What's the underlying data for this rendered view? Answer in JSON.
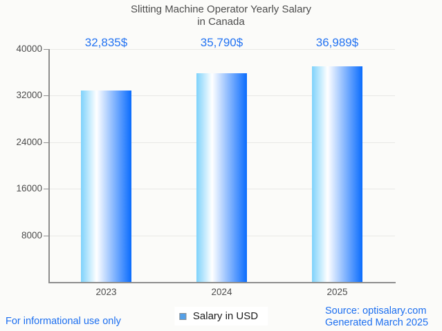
{
  "page": {
    "background": "#fbfbf9",
    "footer_left": "For informational use only",
    "footer_right_line1": "Source: optisalary.com",
    "footer_right_line2": "Generated March 2025"
  },
  "chart_data": {
    "type": "bar",
    "title": "Slitting Machine Operator Yearly Salary",
    "subtitle": "in Canada",
    "categories": [
      "2023",
      "2024",
      "2025"
    ],
    "values": [
      32835,
      35790,
      36989
    ],
    "value_labels": [
      "32,835$",
      "35,790$",
      "36,989$"
    ],
    "series_name": "Salary in USD",
    "xlabel": "",
    "ylabel": "",
    "ylim": [
      0,
      40000
    ],
    "yticks": [
      8000,
      16000,
      24000,
      32000,
      40000
    ],
    "grid": true,
    "legend_position": "bottom-center",
    "colors": {
      "bar_gradient_left": "#7ed2fb",
      "bar_gradient_mid": "#ffffff",
      "bar_gradient_right": "#0a6cfd",
      "value_label_text": "#2373f2",
      "footer_text": "#1b6ef0",
      "axis_line": "#8d8d8d",
      "gridline": "#e8e8e5",
      "tick_text": "#4c4c4c",
      "title_text": "#4c4c4c",
      "legend_swatch_fill": "#54a0e8"
    }
  }
}
